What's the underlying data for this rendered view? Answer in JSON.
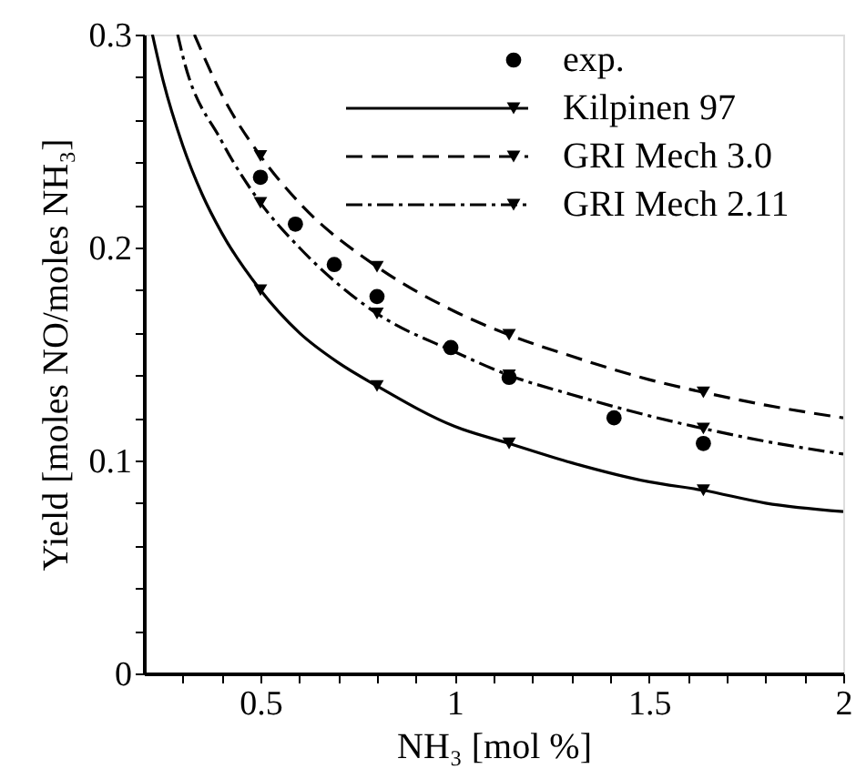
{
  "chart_data": {
    "type": "line",
    "xlabel": "NH₃ [mol %]",
    "ylabel": "Yield [moles NO/moles NH₃]",
    "xlim": [
      0.2,
      2
    ],
    "ylim": [
      0,
      0.3
    ],
    "xticks": [
      {
        "value": 0.3,
        "label": null
      },
      {
        "value": 0.4,
        "label": null
      },
      0.5,
      {
        "value": 0.6,
        "label": null
      },
      {
        "value": 0.7,
        "label": null
      },
      {
        "value": 0.8,
        "label": null
      },
      {
        "value": 0.9,
        "label": null
      },
      1,
      {
        "value": 1.1,
        "label": null
      },
      {
        "value": 1.2,
        "label": null
      },
      {
        "value": 1.3,
        "label": null
      },
      {
        "value": 1.4,
        "label": null
      },
      1.5,
      {
        "value": 1.6,
        "label": null
      },
      {
        "value": 1.7,
        "label": null
      },
      {
        "value": 1.8,
        "label": null
      },
      {
        "value": 1.9,
        "label": null
      },
      2
    ],
    "yticks": [
      0,
      {
        "value": 0.02,
        "label": null
      },
      {
        "value": 0.04,
        "label": null
      },
      {
        "value": 0.06,
        "label": null
      },
      {
        "value": 0.08,
        "label": null
      },
      0.1,
      {
        "value": 0.12,
        "label": null
      },
      {
        "value": 0.14,
        "label": null
      },
      {
        "value": 0.16,
        "label": null
      },
      {
        "value": 0.18,
        "label": null
      },
      0.2,
      {
        "value": 0.22,
        "label": null
      },
      {
        "value": 0.24,
        "label": null
      },
      {
        "value": 0.26,
        "label": null
      },
      {
        "value": 0.28,
        "label": null
      },
      0.3
    ],
    "grid": false,
    "legend": "top right",
    "series": [
      {
        "name": "exp.",
        "type": "scatter",
        "marker": "circle",
        "color": "#000000",
        "x": [
          0.5,
          0.59,
          0.69,
          0.8,
          0.99,
          1.14,
          1.41,
          1.64
        ],
        "values": [
          0.233,
          0.211,
          0.192,
          0.177,
          0.153,
          0.139,
          0.12,
          0.108
        ]
      },
      {
        "name": "Kilpinen 97",
        "type": "line",
        "line_style": "solid",
        "color": "#000000",
        "x": [
          0.222,
          0.25,
          0.3,
          0.35,
          0.4,
          0.5,
          0.6,
          0.7,
          0.8,
          1.0,
          1.14,
          1.3,
          1.5,
          1.64,
          1.8,
          2.0
        ],
        "values": [
          0.3,
          0.278,
          0.248,
          0.225,
          0.207,
          0.18,
          0.16,
          0.146,
          0.135,
          0.116,
          0.108,
          0.099,
          0.09,
          0.086,
          0.08,
          0.076
        ]
      },
      {
        "type": "scatter",
        "marker": "triangle",
        "color": "#000000",
        "x": [
          0.5,
          0.8,
          1.14,
          1.64
        ],
        "values": [
          0.18,
          0.135,
          0.108,
          0.086
        ]
      },
      {
        "name": "GRI Mech 3.0",
        "type": "line",
        "line_style": "dashed",
        "color": "#000000",
        "x": [
          0.33,
          0.4,
          0.5,
          0.6,
          0.8,
          1.0,
          1.14,
          1.3,
          1.5,
          1.64,
          1.8,
          2.0
        ],
        "values": [
          0.3,
          0.272,
          0.243,
          0.221,
          0.191,
          0.17,
          0.159,
          0.149,
          0.138,
          0.132,
          0.126,
          0.12
        ]
      },
      {
        "type": "scatter",
        "marker": "triangle",
        "color": "#000000",
        "x": [
          0.5,
          0.8,
          1.14,
          1.64
        ],
        "values": [
          0.243,
          0.191,
          0.159,
          0.132
        ]
      },
      {
        "name": "GRI Mech 2.11",
        "type": "line",
        "line_style": "dashdot",
        "color": "#000000",
        "x": [
          0.287,
          0.3,
          0.4,
          0.5,
          0.6,
          0.8,
          1.0,
          1.14,
          1.3,
          1.5,
          1.64,
          1.8,
          2.0
        ],
        "values": [
          0.3,
          0.29,
          0.25,
          0.221,
          0.2,
          0.169,
          0.151,
          0.14,
          0.131,
          0.121,
          0.115,
          0.109,
          0.103
        ]
      },
      {
        "type": "scatter",
        "marker": "triangle",
        "color": "#000000",
        "x": [
          0.5,
          0.8,
          1.14,
          1.64
        ],
        "values": [
          0.221,
          0.169,
          0.14,
          0.115
        ]
      }
    ]
  }
}
